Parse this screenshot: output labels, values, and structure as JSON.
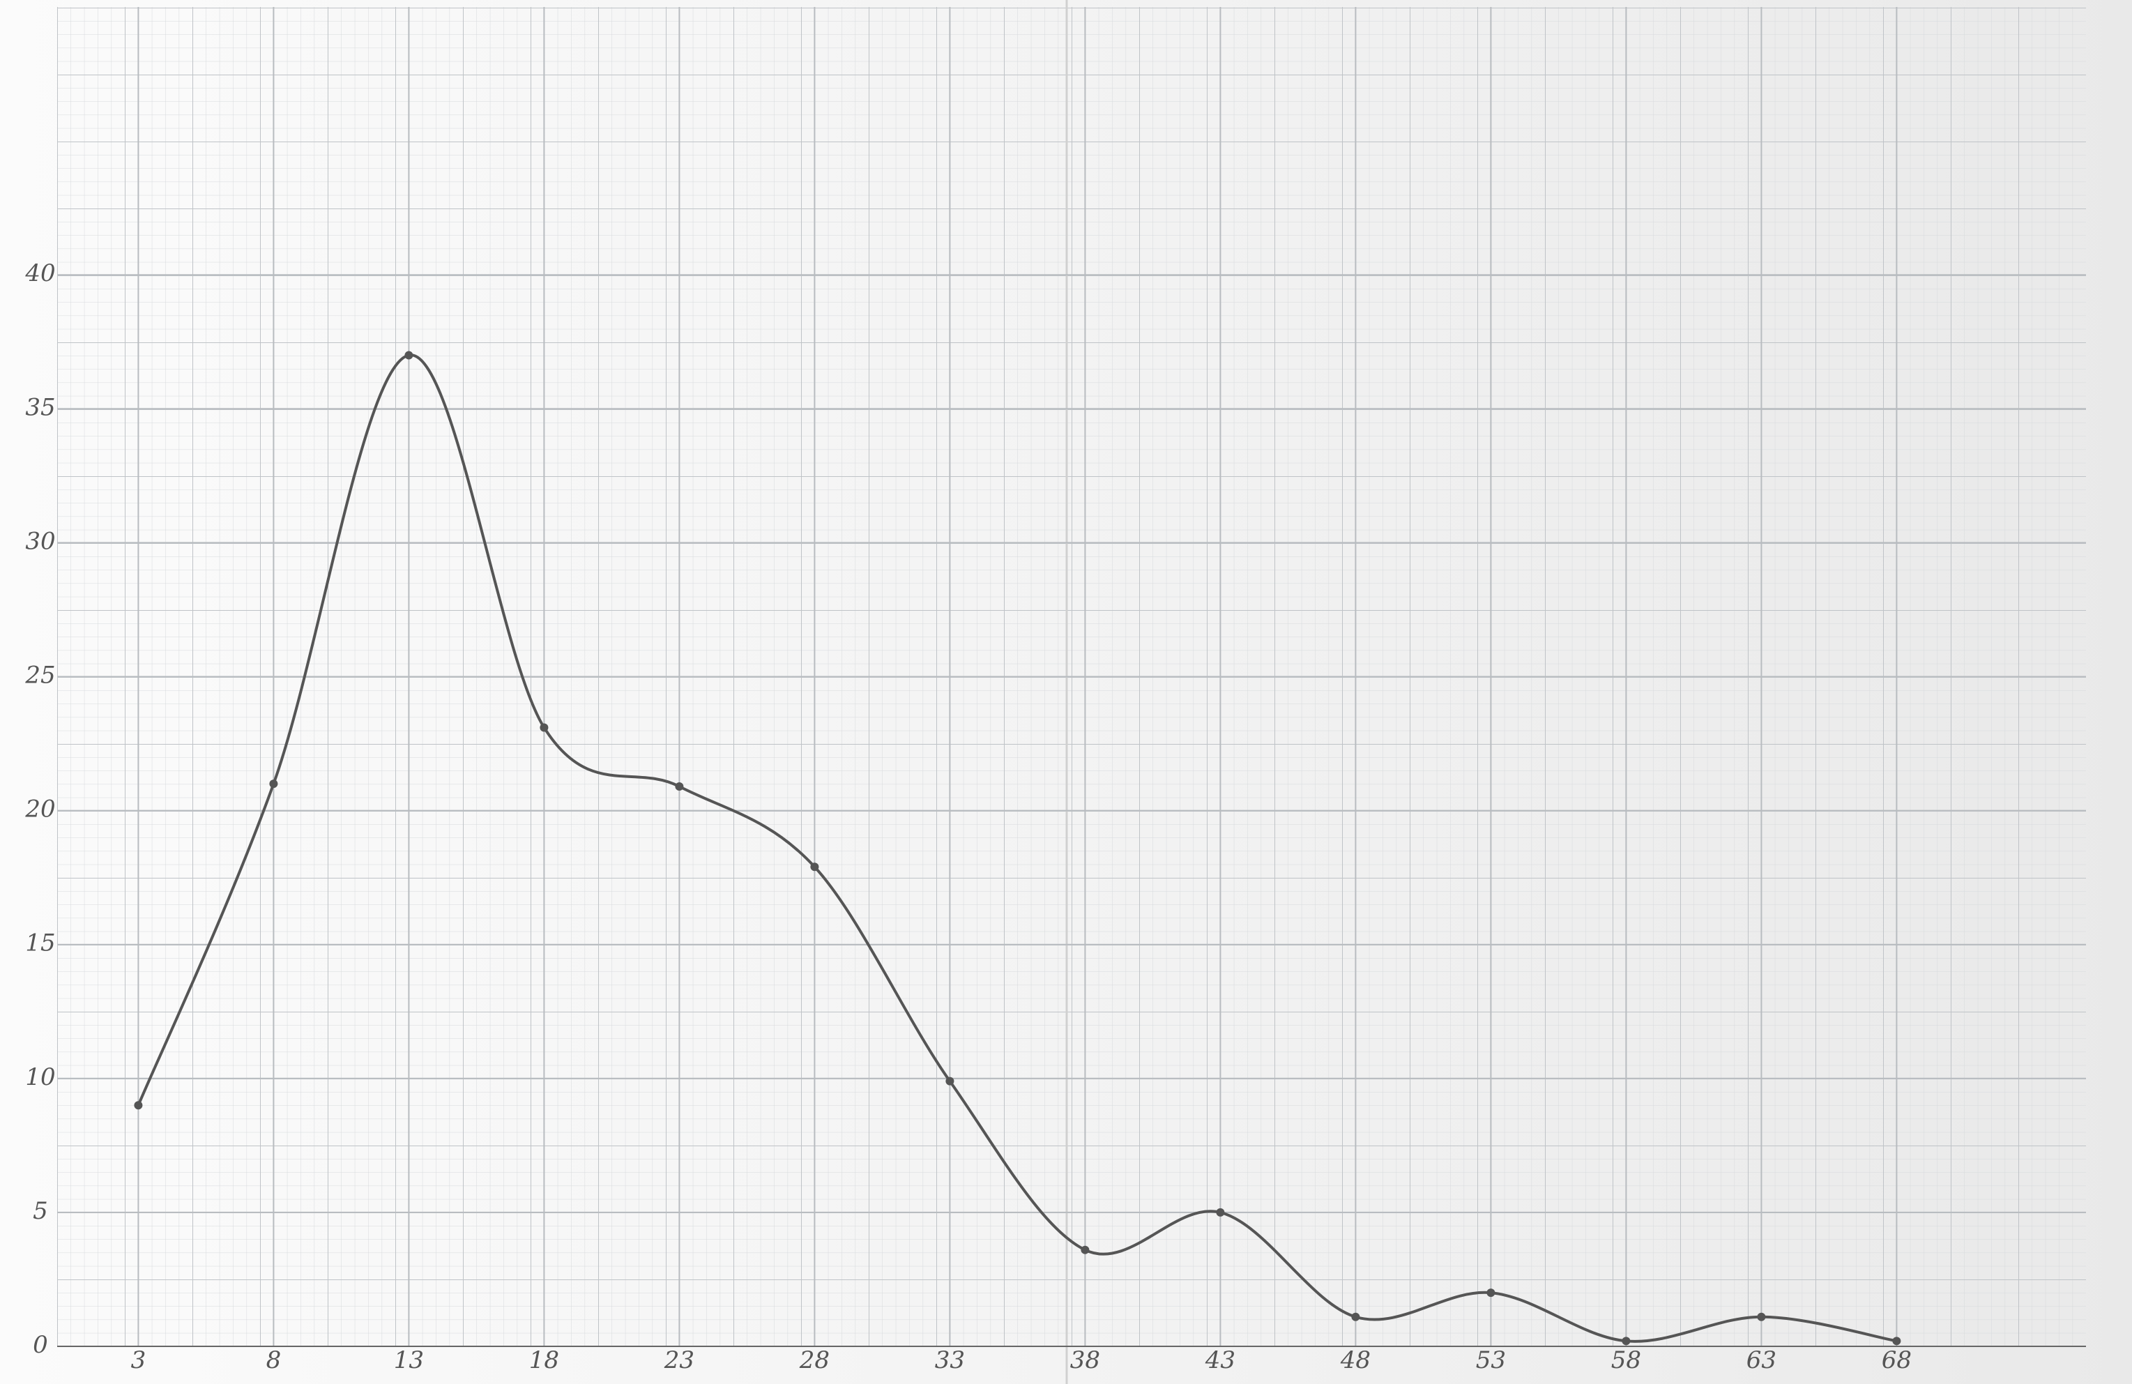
{
  "chart_data": {
    "type": "line",
    "x": [
      3,
      8,
      13,
      18,
      23,
      28,
      33,
      38,
      43,
      48,
      53,
      58,
      63,
      68
    ],
    "values": [
      9,
      21,
      37,
      23.1,
      20.9,
      17.9,
      9.9,
      3.6,
      5,
      1.1,
      2,
      0.2,
      1.1,
      0.2
    ],
    "color": "#555555",
    "xlim": [
      0,
      75
    ],
    "ylim": [
      0,
      50
    ],
    "xticks": [
      3,
      8,
      13,
      18,
      23,
      28,
      33,
      38,
      43,
      48,
      53,
      58,
      63,
      68
    ],
    "yticks": [
      0,
      5,
      10,
      15,
      20,
      25,
      30,
      35,
      40
    ],
    "grid": true
  }
}
